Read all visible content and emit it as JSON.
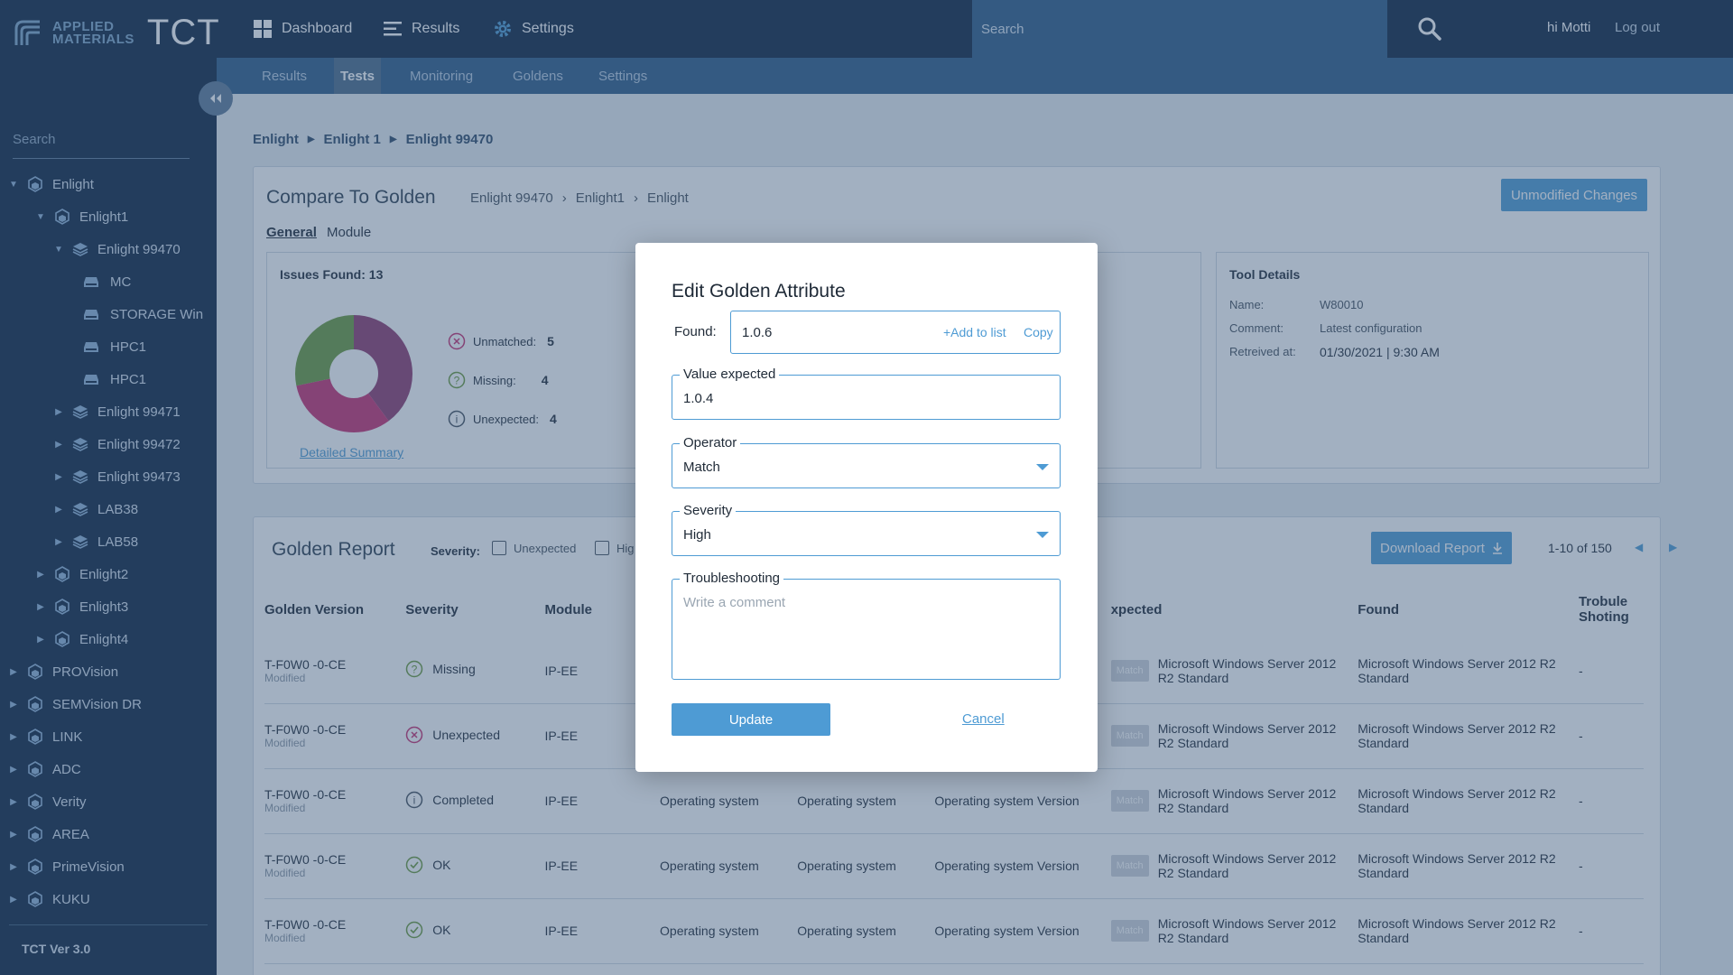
{
  "app": {
    "logo_line1": "APPLIED",
    "logo_line2": "MATERIALS",
    "product": "TCT",
    "user_greeting": "hi Motti",
    "logout": "Log out",
    "search_placeholder": "Search"
  },
  "nav": [
    {
      "label": "Dashboard",
      "icon": "grid-icon"
    },
    {
      "label": "Results",
      "icon": "list-icon"
    },
    {
      "label": "Settings",
      "icon": "gear-icon"
    }
  ],
  "subnav": [
    "Results",
    "Tests",
    "Monitoring",
    "Goldens",
    "Settings"
  ],
  "sidebar": {
    "search_placeholder": "Search",
    "version": "TCT Ver 3.0",
    "tree": [
      {
        "label": "Enlight",
        "level": 0,
        "expanded": true,
        "icon": "cube-icon"
      },
      {
        "label": "Enlight1",
        "level": 1,
        "expanded": true,
        "icon": "cube-icon"
      },
      {
        "label": "Enlight 99470",
        "level": 2,
        "expanded": true,
        "icon": "layers-icon"
      },
      {
        "label": "MC",
        "level": 3,
        "icon": "server-icon"
      },
      {
        "label": "STORAGE Win",
        "level": 3,
        "icon": "server-icon"
      },
      {
        "label": "HPC1",
        "level": 3,
        "icon": "server-icon"
      },
      {
        "label": "HPC1",
        "level": 3,
        "icon": "server-icon"
      },
      {
        "label": "Enlight 99471",
        "level": 2,
        "expanded": false,
        "icon": "layers-icon"
      },
      {
        "label": "Enlight 99472",
        "level": 2,
        "expanded": false,
        "icon": "layers-icon"
      },
      {
        "label": "Enlight 99473",
        "level": 2,
        "expanded": false,
        "icon": "layers-icon"
      },
      {
        "label": "LAB38",
        "level": 2,
        "expanded": false,
        "icon": "layers-icon"
      },
      {
        "label": "LAB58",
        "level": 2,
        "expanded": false,
        "icon": "layers-icon"
      },
      {
        "label": "Enlight2",
        "level": 1,
        "expanded": false,
        "icon": "cube-icon"
      },
      {
        "label": "Enlight3",
        "level": 1,
        "expanded": false,
        "icon": "cube-icon"
      },
      {
        "label": "Enlight4",
        "level": 1,
        "expanded": false,
        "icon": "cube-icon"
      },
      {
        "label": "PROVision",
        "level": 0,
        "expanded": false,
        "icon": "cube-icon"
      },
      {
        "label": "SEMVision DR",
        "level": 0,
        "expanded": false,
        "icon": "cube-icon"
      },
      {
        "label": "LINK",
        "level": 0,
        "expanded": false,
        "icon": "cube-icon"
      },
      {
        "label": "ADC",
        "level": 0,
        "expanded": false,
        "icon": "cube-icon"
      },
      {
        "label": "Verity",
        "level": 0,
        "expanded": false,
        "icon": "cube-icon"
      },
      {
        "label": "AREA",
        "level": 0,
        "expanded": false,
        "icon": "cube-icon"
      },
      {
        "label": "PrimeVision",
        "level": 0,
        "expanded": false,
        "icon": "cube-icon"
      },
      {
        "label": "KUKU",
        "level": 0,
        "expanded": false,
        "icon": "cube-icon"
      }
    ]
  },
  "breadcrumb": [
    "Enlight",
    "Enlight 1",
    "Enlight 99470"
  ],
  "compare": {
    "title": "Compare To Golden",
    "path": [
      "Enlight 99470",
      "Enlight1",
      "Enlight"
    ],
    "unmodified_btn": "Unmodified Changes",
    "tabs": [
      "General",
      "Module"
    ],
    "issues_label": "Issues Found:",
    "issues_count": "13",
    "legend": [
      {
        "label": "Unmatched:",
        "value": "5"
      },
      {
        "label": "Missing:",
        "value": "4"
      },
      {
        "label": "Unexpected:",
        "value": "4"
      }
    ],
    "detailed_summary": "Detailed Summary",
    "tool_details": {
      "title": "Tool Details",
      "name_label": "Name:",
      "name": "W80010",
      "comment_label": "Comment:",
      "comment": "Latest configuration",
      "retrieved_label": "Retreived at:",
      "retrieved": "01/30/2021 | 9:30 AM"
    }
  },
  "report": {
    "title": "Golden Report",
    "severity_label": "Severity:",
    "filter_unexpected": "Unexpected",
    "filter_high": "Hig",
    "download": "Download Report",
    "pager": "1-10 of 150",
    "columns": [
      "Golden Version",
      "Severity",
      "Module",
      "",
      "",
      "",
      "xpected",
      "Found",
      "Trobule Shoting"
    ],
    "rows": [
      {
        "version": "T-F0W0 -0-CE",
        "sub": "Modified",
        "severity": "Missing",
        "sev_icon": "question-icon",
        "module": "IP-EE",
        "c4": "",
        "c5": "",
        "c6": "",
        "match": "Match",
        "expected": "Microsoft Windows Server 2012 R2 Standard",
        "found": "Microsoft Windows Server 2012 R2 Standard",
        "ts": "-"
      },
      {
        "version": "T-F0W0 -0-CE",
        "sub": "Modified",
        "severity": "Unexpected",
        "sev_icon": "x-circle-icon",
        "module": "IP-EE",
        "c4": "",
        "c5": "",
        "c6": "",
        "match": "Match",
        "expected": "Microsoft Windows Server 2012 R2 Standard",
        "found": "Microsoft Windows Server 2012 R2 Standard",
        "ts": "-"
      },
      {
        "version": "T-F0W0 -0-CE",
        "sub": "Modified",
        "severity": "Completed",
        "sev_icon": "info-icon",
        "module": "IP-EE",
        "c4": "Operating system",
        "c5": "Operating system",
        "c6": "Operating system Version",
        "match": "Match",
        "expected": "Microsoft Windows Server 2012 R2 Standard",
        "found": "Microsoft Windows Server 2012 R2 Standard",
        "ts": "-"
      },
      {
        "version": "T-F0W0 -0-CE",
        "sub": "Modified",
        "severity": "OK",
        "sev_icon": "check-icon",
        "module": "IP-EE",
        "c4": "Operating system",
        "c5": "Operating system",
        "c6": "Operating system Version",
        "match": "Match",
        "expected": "Microsoft Windows Server 2012 R2 Standard",
        "found": "Microsoft Windows Server 2012 R2 Standard",
        "ts": "-"
      },
      {
        "version": "T-F0W0 -0-CE",
        "sub": "Modified",
        "severity": "OK",
        "sev_icon": "check-icon",
        "module": "IP-EE",
        "c4": "Operating system",
        "c5": "Operating system",
        "c6": "Operating system Version",
        "match": "Match",
        "expected": "Microsoft Windows Server 2012 R2 Standard",
        "found": "Microsoft Windows Server 2012 R2 Standard",
        "ts": "-"
      }
    ]
  },
  "modal": {
    "title": "Edit Golden Attribute",
    "found_label": "Found:",
    "found_value": "1.0.6",
    "add_to_list": "+Add to list",
    "copy": "Copy",
    "value_expected_label": "Value expected",
    "value_expected": "1.0.4",
    "operator_label": "Operator",
    "operator": "Match",
    "severity_label": "Severity",
    "severity": "High",
    "troubleshooting_label": "Troubleshooting",
    "troubleshooting_placeholder": "Write a comment",
    "update": "Update",
    "cancel": "Cancel"
  },
  "colors": {
    "navy": "#0c2340",
    "accent": "#4e9bd4",
    "pie_green": "#6a9a3c",
    "pie_pink": "#c72e6f",
    "pie_plum": "#8e3a6e"
  }
}
